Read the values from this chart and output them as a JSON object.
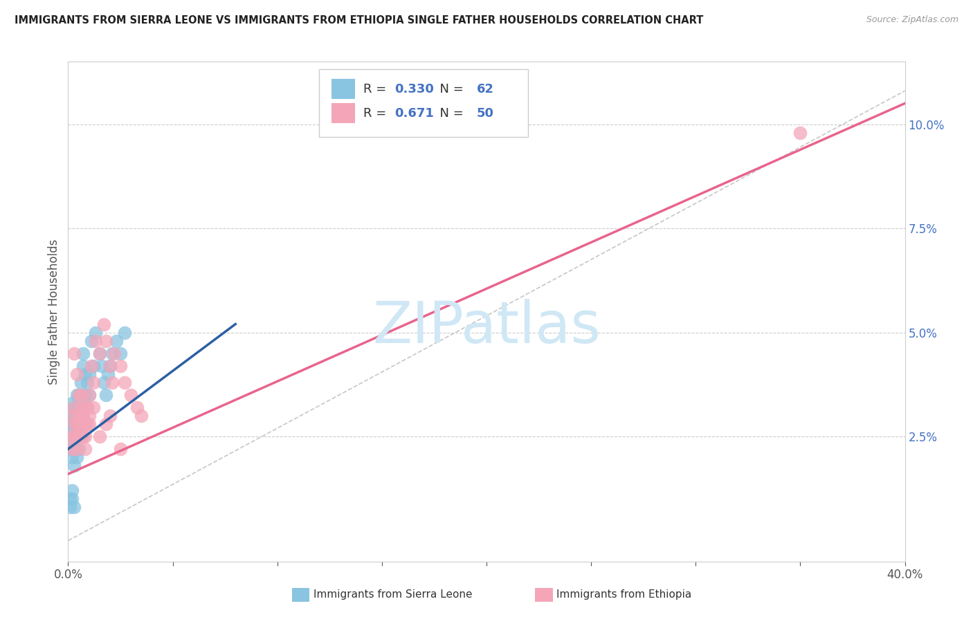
{
  "title": "IMMIGRANTS FROM SIERRA LEONE VS IMMIGRANTS FROM ETHIOPIA SINGLE FATHER HOUSEHOLDS CORRELATION CHART",
  "source": "Source: ZipAtlas.com",
  "ylabel": "Single Father Households",
  "xlabel_sierra": "Immigrants from Sierra Leone",
  "xlabel_ethiopia": "Immigrants from Ethiopia",
  "xlim": [
    0.0,
    0.4
  ],
  "ylim": [
    -0.005,
    0.115
  ],
  "ytick_right": [
    0.025,
    0.05,
    0.075,
    0.1
  ],
  "ytick_right_labels": [
    "2.5%",
    "5.0%",
    "7.5%",
    "10.0%"
  ],
  "sierra_color": "#89c4e1",
  "ethiopia_color": "#f4a6b8",
  "sierra_line_color": "#2b5fa5",
  "ethiopia_line_color": "#e8648c",
  "diag_color": "#c0c0c0",
  "r_sierra": 0.33,
  "n_sierra": 62,
  "r_ethiopia": 0.671,
  "n_ethiopia": 50,
  "watermark": "ZIPatlas",
  "watermark_color": "#d0e8f5",
  "sierra_line_x": [
    0.0,
    0.08
  ],
  "sierra_line_y": [
    0.022,
    0.052
  ],
  "ethiopia_line_x": [
    0.0,
    0.4
  ],
  "ethiopia_line_y": [
    0.016,
    0.105
  ],
  "diag_line_x": [
    0.0,
    0.4
  ],
  "diag_line_y": [
    0.0,
    0.108
  ],
  "sierra_x": [
    0.001,
    0.001,
    0.001,
    0.002,
    0.002,
    0.002,
    0.002,
    0.003,
    0.003,
    0.003,
    0.003,
    0.003,
    0.003,
    0.003,
    0.003,
    0.004,
    0.004,
    0.004,
    0.004,
    0.004,
    0.004,
    0.004,
    0.005,
    0.005,
    0.005,
    0.005,
    0.005,
    0.005,
    0.006,
    0.006,
    0.006,
    0.006,
    0.006,
    0.007,
    0.007,
    0.007,
    0.007,
    0.008,
    0.008,
    0.008,
    0.009,
    0.009,
    0.01,
    0.01,
    0.011,
    0.012,
    0.013,
    0.015,
    0.016,
    0.017,
    0.018,
    0.019,
    0.02,
    0.021,
    0.023,
    0.025,
    0.027,
    0.001,
    0.001,
    0.002,
    0.002,
    0.003
  ],
  "sierra_y": [
    0.025,
    0.028,
    0.022,
    0.028,
    0.03,
    0.033,
    0.02,
    0.028,
    0.03,
    0.025,
    0.032,
    0.022,
    0.018,
    0.028,
    0.025,
    0.03,
    0.028,
    0.025,
    0.02,
    0.032,
    0.035,
    0.025,
    0.03,
    0.032,
    0.028,
    0.025,
    0.022,
    0.035,
    0.028,
    0.03,
    0.032,
    0.025,
    0.038,
    0.03,
    0.028,
    0.045,
    0.042,
    0.028,
    0.035,
    0.04,
    0.032,
    0.038,
    0.035,
    0.04,
    0.048,
    0.042,
    0.05,
    0.045,
    0.042,
    0.038,
    0.035,
    0.04,
    0.042,
    0.045,
    0.048,
    0.045,
    0.05,
    0.008,
    0.01,
    0.01,
    0.012,
    0.008
  ],
  "ethiopia_x": [
    0.001,
    0.002,
    0.002,
    0.003,
    0.003,
    0.003,
    0.004,
    0.004,
    0.004,
    0.005,
    0.005,
    0.005,
    0.006,
    0.006,
    0.006,
    0.007,
    0.007,
    0.008,
    0.008,
    0.009,
    0.009,
    0.01,
    0.01,
    0.011,
    0.012,
    0.013,
    0.015,
    0.017,
    0.018,
    0.02,
    0.021,
    0.022,
    0.025,
    0.027,
    0.03,
    0.033,
    0.035,
    0.003,
    0.004,
    0.005,
    0.006,
    0.007,
    0.008,
    0.01,
    0.012,
    0.015,
    0.018,
    0.02,
    0.025,
    0.35
  ],
  "ethiopia_y": [
    0.025,
    0.03,
    0.022,
    0.028,
    0.032,
    0.025,
    0.025,
    0.028,
    0.022,
    0.03,
    0.025,
    0.028,
    0.032,
    0.025,
    0.035,
    0.028,
    0.03,
    0.025,
    0.032,
    0.028,
    0.032,
    0.035,
    0.03,
    0.042,
    0.038,
    0.048,
    0.045,
    0.052,
    0.048,
    0.042,
    0.038,
    0.045,
    0.042,
    0.038,
    0.035,
    0.032,
    0.03,
    0.045,
    0.04,
    0.035,
    0.03,
    0.025,
    0.022,
    0.028,
    0.032,
    0.025,
    0.028,
    0.03,
    0.022,
    0.098
  ]
}
